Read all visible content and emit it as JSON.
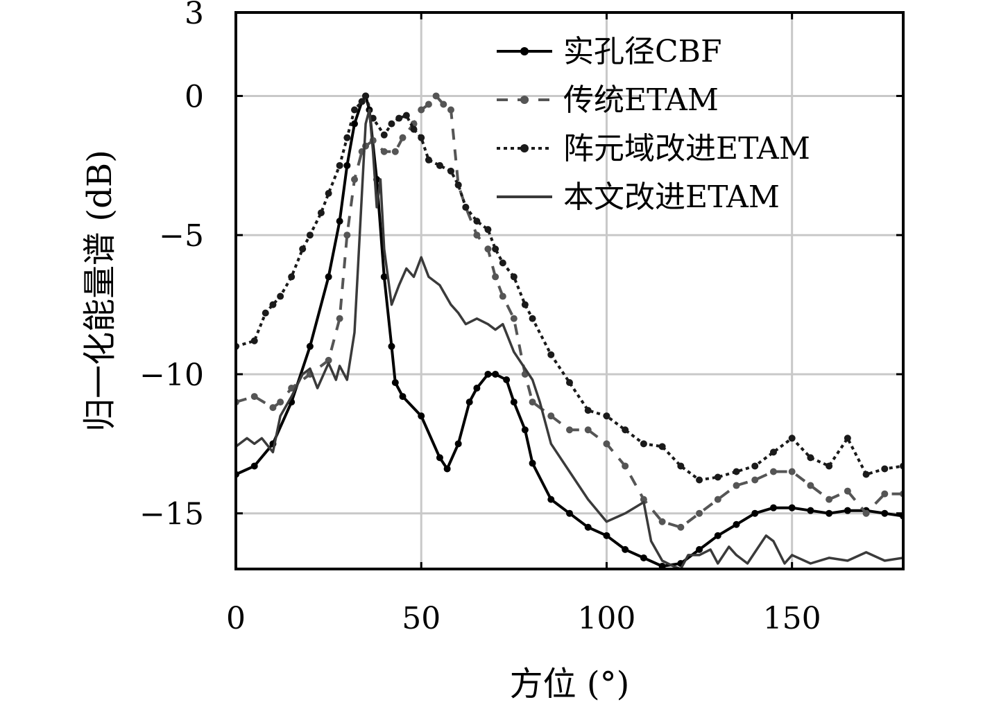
{
  "chart_data": {
    "type": "line",
    "xlabel": "方位 (°)",
    "ylabel": "归一化能量谱 (dB)",
    "xlim": [
      0,
      180
    ],
    "ylim": [
      -17,
      3
    ],
    "xticks": [
      0,
      50,
      100,
      150
    ],
    "xtick_labels": [
      "0",
      "50",
      "100",
      "150"
    ],
    "yticks": [
      3,
      0,
      -5,
      -10,
      -15
    ],
    "ytick_labels": [
      "3",
      "0",
      "−5",
      "−10",
      "−15"
    ],
    "grid": true,
    "legend_position": "top-right",
    "series": [
      {
        "name": "实孔径CBF",
        "color": "#000000",
        "dash": "solid",
        "marker": true,
        "x": [
          0,
          5,
          10,
          15,
          20,
          25,
          28,
          30,
          32,
          34,
          35,
          36,
          38,
          40,
          42,
          43,
          45,
          50,
          55,
          57,
          60,
          63,
          65,
          68,
          70,
          73,
          75,
          78,
          80,
          85,
          90,
          95,
          100,
          105,
          110,
          115,
          120,
          125,
          130,
          135,
          140,
          145,
          150,
          155,
          160,
          165,
          170,
          175,
          180
        ],
        "y": [
          -13.6,
          -13.3,
          -12.5,
          -11,
          -9,
          -6.5,
          -4.5,
          -2.5,
          -1,
          -0.2,
          0,
          -0.5,
          -3,
          -6.5,
          -9,
          -10.3,
          -10.8,
          -11.5,
          -13,
          -13.4,
          -12.5,
          -11,
          -10.5,
          -10,
          -10,
          -10.2,
          -11,
          -12,
          -13.2,
          -14.5,
          -15,
          -15.5,
          -15.8,
          -16.3,
          -16.6,
          -16.9,
          -16.8,
          -16.3,
          -15.8,
          -15.4,
          -15,
          -14.8,
          -14.8,
          -14.9,
          -15,
          -14.9,
          -14.9,
          -15,
          -15.1
        ]
      },
      {
        "name": "传统ETAM",
        "color": "#555555",
        "dash": "dashed",
        "marker": true,
        "x": [
          0,
          5,
          10,
          12,
          15,
          20,
          25,
          28,
          30,
          32,
          34,
          35,
          37,
          40,
          43,
          45,
          48,
          50,
          52,
          54,
          56,
          58,
          60,
          62,
          65,
          68,
          70,
          72,
          75,
          78,
          80,
          85,
          90,
          95,
          100,
          105,
          110,
          115,
          120,
          125,
          130,
          135,
          140,
          145,
          150,
          155,
          160,
          165,
          170,
          175,
          180
        ],
        "y": [
          -11,
          -10.8,
          -11.2,
          -11,
          -10.5,
          -10,
          -9.5,
          -8,
          -5,
          -3,
          -2,
          -1.8,
          -1.6,
          -2,
          -2,
          -1.5,
          -1,
          -0.5,
          -0.3,
          0,
          -0.3,
          -0.5,
          -3.2,
          -4,
          -5,
          -5.5,
          -6.5,
          -7.2,
          -8,
          -10,
          -11,
          -11.5,
          -12,
          -12,
          -12.5,
          -13.3,
          -14.5,
          -15.3,
          -15.5,
          -15,
          -14.5,
          -14,
          -13.8,
          -13.5,
          -13.5,
          -14,
          -14.5,
          -14.2,
          -15,
          -14.3,
          -14.3
        ]
      },
      {
        "name": "阵元域改进ETAM",
        "color": "#1a1a1a",
        "dash": "dotted",
        "marker": true,
        "x": [
          0,
          5,
          8,
          10,
          12,
          15,
          18,
          20,
          23,
          25,
          28,
          30,
          32,
          34,
          35,
          37,
          40,
          42,
          44,
          46,
          48,
          50,
          52,
          55,
          58,
          60,
          62,
          65,
          68,
          70,
          72,
          75,
          78,
          80,
          85,
          90,
          95,
          100,
          105,
          110,
          115,
          120,
          125,
          130,
          135,
          140,
          145,
          150,
          155,
          160,
          165,
          170,
          175,
          180
        ],
        "y": [
          -9,
          -8.8,
          -7.8,
          -7.5,
          -7.2,
          -6.5,
          -5.5,
          -5,
          -4.2,
          -3.5,
          -2.5,
          -1.5,
          -0.5,
          -0.2,
          0,
          -0.8,
          -1.4,
          -1,
          -0.8,
          -0.7,
          -1.2,
          -1.5,
          -2.3,
          -2.5,
          -2.7,
          -3.2,
          -4,
          -4.5,
          -4.8,
          -5.5,
          -6,
          -6.5,
          -7.5,
          -8,
          -9.3,
          -10.3,
          -11.3,
          -11.5,
          -12,
          -12.5,
          -12.6,
          -13.3,
          -13.8,
          -13.7,
          -13.5,
          -13.3,
          -12.8,
          -12.3,
          -13,
          -13.3,
          -12.3,
          -13.6,
          -13.4,
          -13.3
        ]
      },
      {
        "name": "本文改进ETAM",
        "color": "#3a3a3a",
        "dash": "solid",
        "marker": false,
        "x": [
          0,
          3,
          5,
          7,
          10,
          12,
          15,
          18,
          20,
          22,
          25,
          27,
          28,
          30,
          32,
          33,
          34,
          35,
          36,
          37,
          38,
          39,
          40,
          42,
          44,
          46,
          48,
          50,
          52,
          55,
          58,
          60,
          62,
          65,
          68,
          70,
          72,
          75,
          78,
          80,
          82,
          85,
          90,
          95,
          100,
          105,
          110,
          112,
          115,
          118,
          120,
          122,
          125,
          128,
          130,
          133,
          135,
          138,
          140,
          143,
          145,
          148,
          150,
          155,
          160,
          165,
          170,
          175,
          180
        ],
        "y": [
          -12.6,
          -12.3,
          -12.5,
          -12.3,
          -12.8,
          -11.5,
          -10.8,
          -10,
          -9.8,
          -10.5,
          -9.6,
          -10.2,
          -9.7,
          -10.2,
          -8.5,
          -6,
          -3.5,
          -1,
          -0.5,
          -2,
          -4,
          -3,
          -5.5,
          -7.5,
          -6.8,
          -6.2,
          -6.5,
          -5.8,
          -6.5,
          -6.8,
          -7.5,
          -7.8,
          -8.2,
          -8,
          -8.2,
          -8.4,
          -8.2,
          -9.2,
          -9.8,
          -10.2,
          -11,
          -12.5,
          -13.5,
          -14.5,
          -15.3,
          -15,
          -14.6,
          -16,
          -16.7,
          -16.9,
          -17,
          -16.5,
          -16.5,
          -16.3,
          -16.8,
          -16.2,
          -16.5,
          -16.8,
          -16.4,
          -15.8,
          -16,
          -16.8,
          -16.5,
          -16.8,
          -16.6,
          -16.7,
          -16.4,
          -16.7,
          -16.6
        ]
      }
    ]
  }
}
